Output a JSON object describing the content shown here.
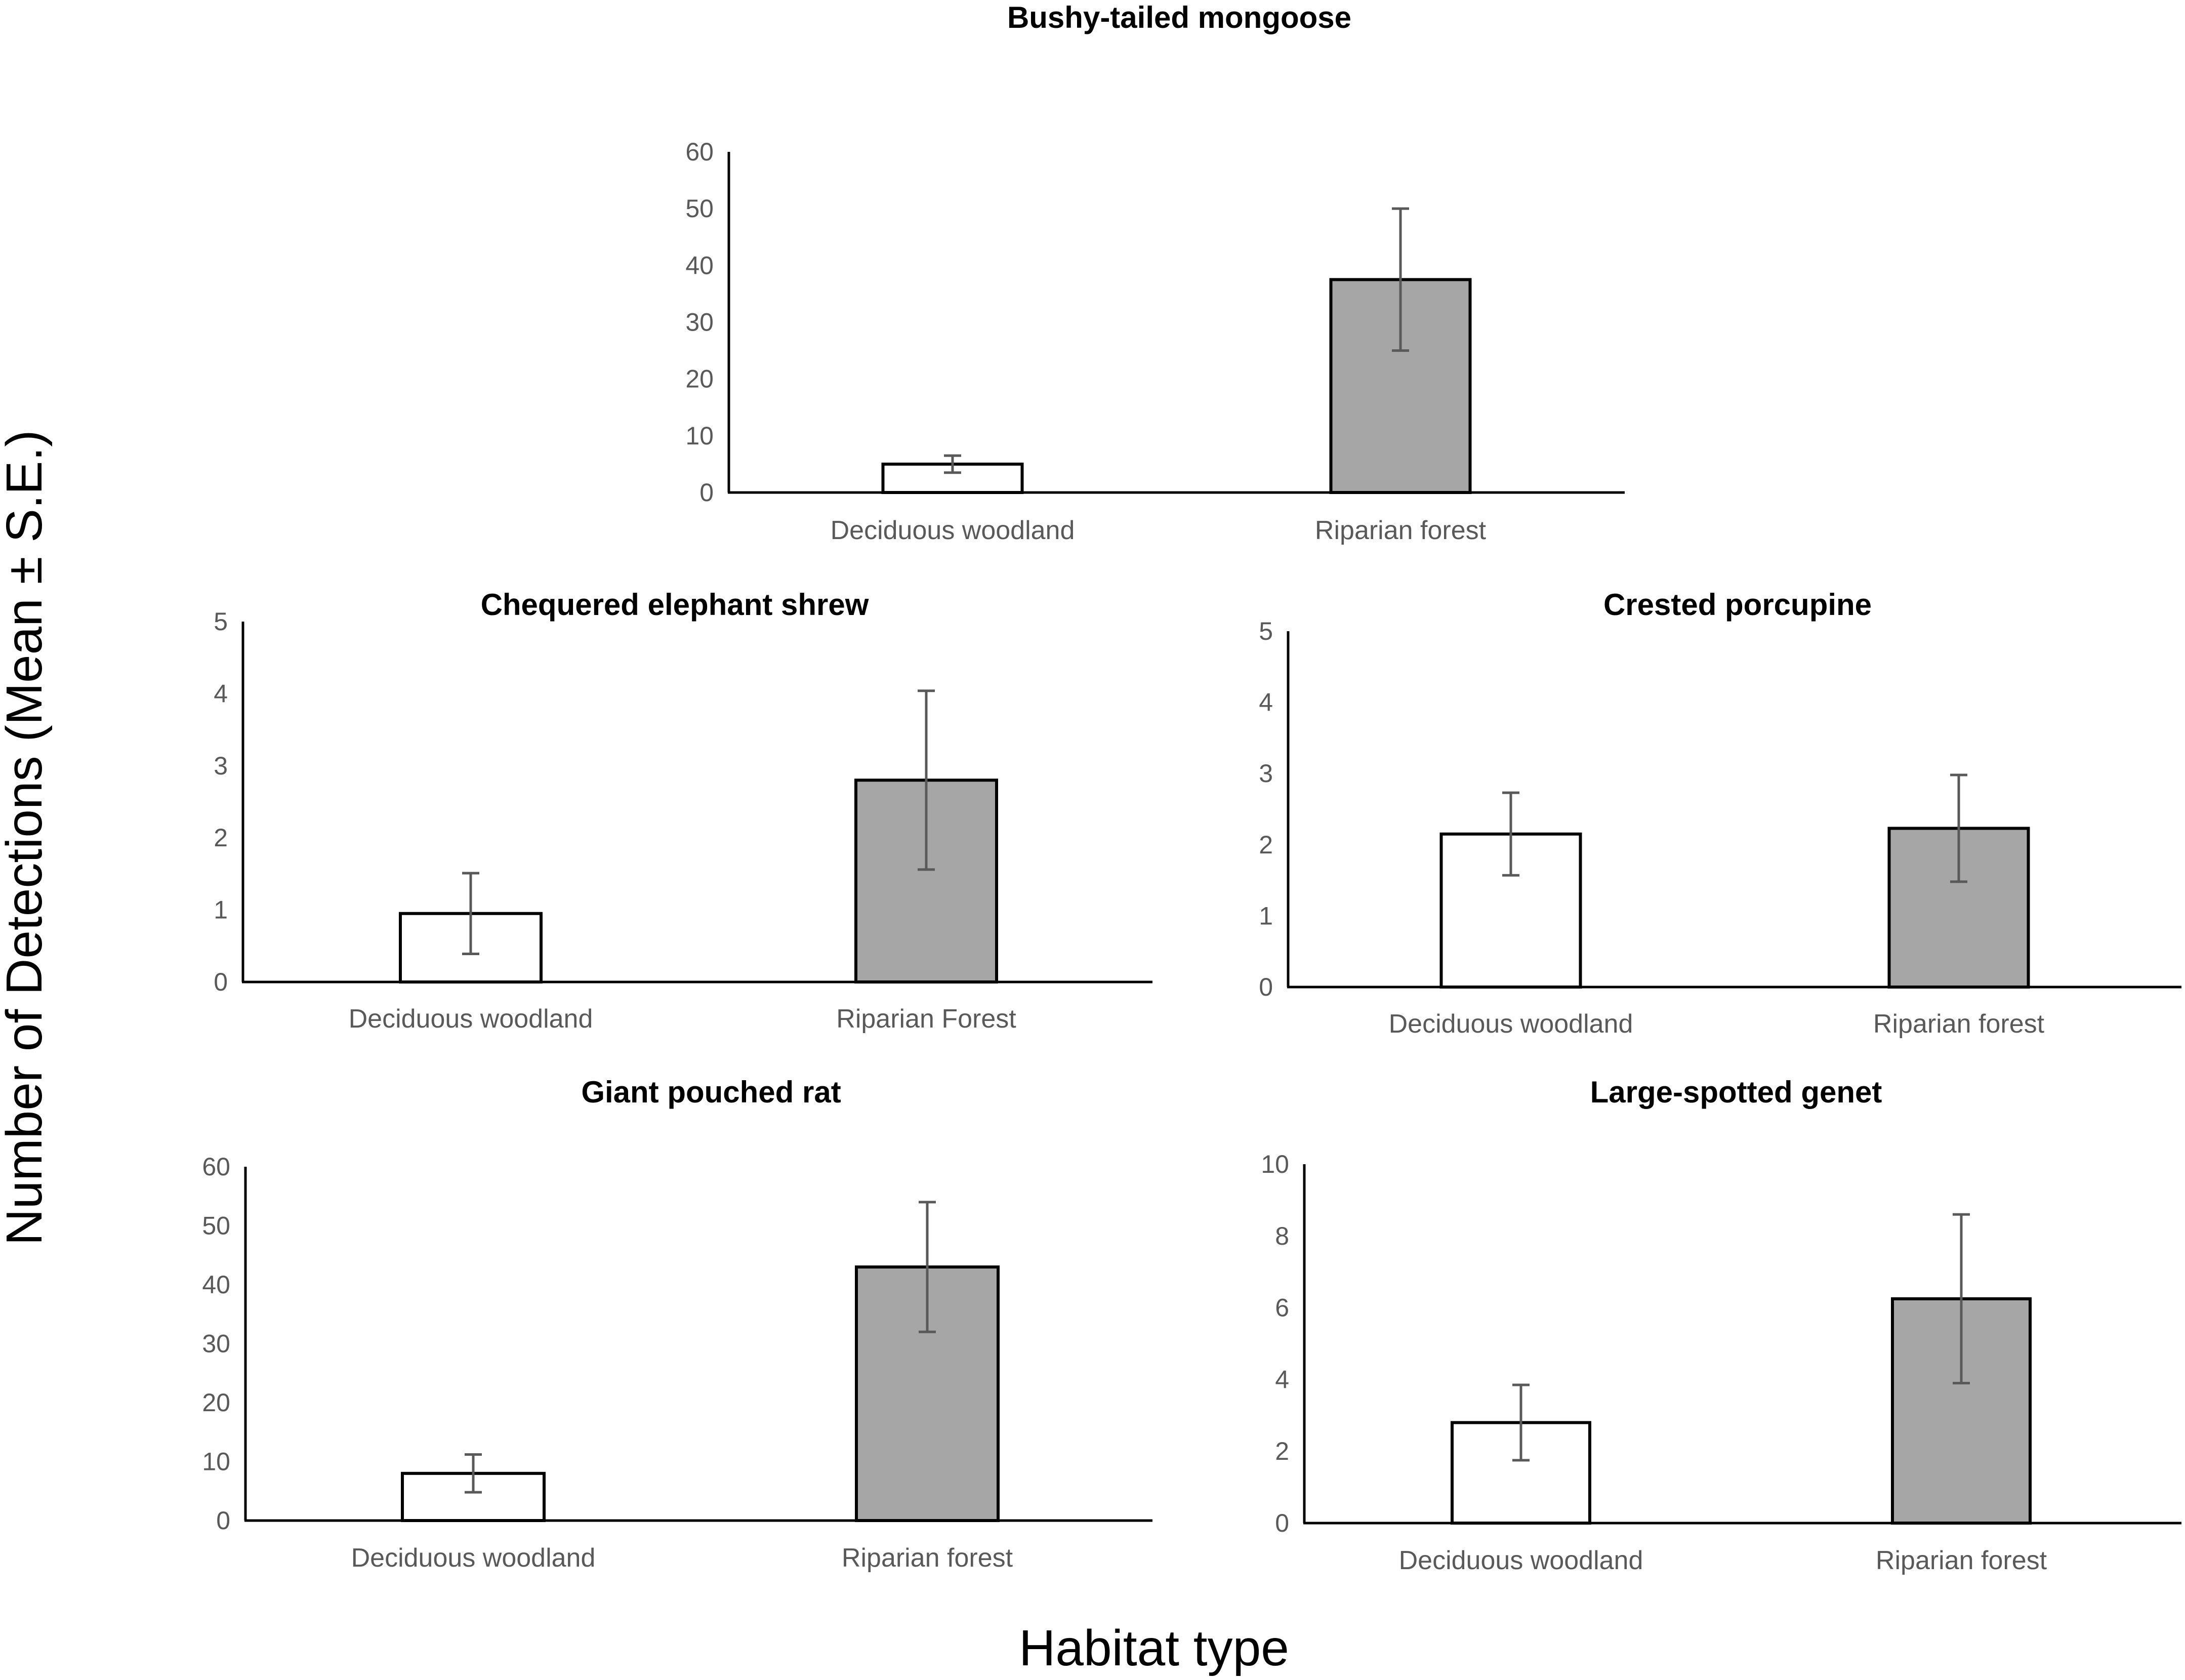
{
  "figure": {
    "ylabel": "Number of Detections (Mean ± S.E.)",
    "xlabel": "Habitat type"
  },
  "colors": {
    "deciduous_fill": "#ffffff",
    "riparian_fill": "#a6a6a6",
    "bar_stroke": "#000000",
    "errorbar": "#595959",
    "axis": "#000000",
    "tick_text": "#595959",
    "title_text": "#000000"
  },
  "chart_data": [
    {
      "type": "bar",
      "title": "Bushy-tailed mongoose",
      "categories": [
        "Deciduous woodland",
        "Riparian forest"
      ],
      "values": [
        5,
        37.5
      ],
      "errors": [
        1.5,
        12.5
      ],
      "ylim": [
        0,
        60
      ],
      "yticks": [
        0,
        10,
        20,
        30,
        40,
        50,
        60
      ],
      "grid": false
    },
    {
      "type": "bar",
      "title": "Chequered elephant shrew",
      "categories": [
        "Deciduous woodland",
        "Riparian Forest"
      ],
      "values": [
        0.95,
        2.8
      ],
      "errors": [
        0.56,
        1.24
      ],
      "ylim": [
        0,
        5
      ],
      "yticks": [
        0,
        1,
        2,
        3,
        4,
        5
      ],
      "grid": false
    },
    {
      "type": "bar",
      "title": "Crested porcupine",
      "categories": [
        "Deciduous woodland",
        "Riparian forest"
      ],
      "values": [
        2.15,
        2.23
      ],
      "errors": [
        0.58,
        0.75
      ],
      "ylim": [
        0,
        5
      ],
      "yticks": [
        0,
        1,
        2,
        3,
        4,
        5
      ],
      "grid": false
    },
    {
      "type": "bar",
      "title": "Giant pouched rat",
      "categories": [
        "Deciduous woodland",
        "Riparian forest"
      ],
      "values": [
        8,
        43
      ],
      "errors": [
        3.2,
        11
      ],
      "ylim": [
        0,
        60
      ],
      "yticks": [
        0,
        10,
        20,
        30,
        40,
        50,
        60
      ],
      "grid": false
    },
    {
      "type": "bar",
      "title": "Large-spotted genet",
      "categories": [
        "Deciduous woodland",
        "Riparian forest"
      ],
      "values": [
        2.8,
        6.25
      ],
      "errors": [
        1.05,
        2.35
      ],
      "ylim": [
        0,
        10
      ],
      "yticks": [
        0,
        2,
        4,
        6,
        8,
        10
      ],
      "grid": false
    }
  ]
}
